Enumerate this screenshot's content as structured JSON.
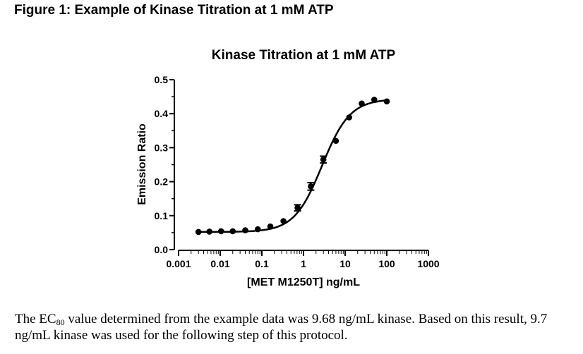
{
  "figure_heading": "Figure 1: Example of Kinase Titration at 1 mM ATP",
  "chart_data": {
    "type": "scatter",
    "title": "Kinase Titration at 1 mM ATP",
    "xlabel": "[MET M1250T] ng/mL",
    "ylabel": "Emission Ratio",
    "xscale": "log",
    "xlim": [
      0.001,
      1000
    ],
    "ylim": [
      0.0,
      0.5
    ],
    "xticks": [
      0.001,
      0.01,
      0.1,
      1,
      10,
      100,
      1000
    ],
    "xtick_labels": [
      "0.001",
      "0.01",
      "0.1",
      "1",
      "10",
      "100",
      "1000"
    ],
    "yticks": [
      0.0,
      0.1,
      0.2,
      0.3,
      0.4,
      0.5
    ],
    "ytick_labels": [
      "0.0",
      "0.1",
      "0.2",
      "0.3",
      "0.4",
      "0.5"
    ],
    "grid": false,
    "legend": "none",
    "points": {
      "x": [
        0.003,
        0.0055,
        0.0105,
        0.02,
        0.04,
        0.08,
        0.16,
        0.33,
        0.72,
        1.5,
        3.0,
        6.0,
        12.5,
        25,
        50,
        100
      ],
      "y": [
        0.052,
        0.053,
        0.054,
        0.054,
        0.057,
        0.06,
        0.068,
        0.084,
        0.123,
        0.186,
        0.265,
        0.32,
        0.389,
        0.43,
        0.441,
        0.436
      ],
      "error": [
        0.003,
        0.003,
        0.003,
        0.003,
        0.003,
        0.003,
        0.004,
        0.004,
        0.009,
        0.011,
        0.01,
        0.005,
        0.005,
        0.003,
        0.003,
        0.003
      ]
    },
    "fit_curve": {
      "type": "sigmoidal dose-response",
      "bottom": 0.052,
      "top": 0.443,
      "ec50": 2.8,
      "hill": 1.3
    }
  },
  "caption": {
    "part1": "The EC",
    "subscript": "80",
    "part2": " value determined from the example data was 9.68 ng/mL kinase.  Based on this result, 9.7 ng/mL kinase was used for the following step of this protocol."
  },
  "colors": {
    "ink": "#000000",
    "background": "#ffffff"
  }
}
